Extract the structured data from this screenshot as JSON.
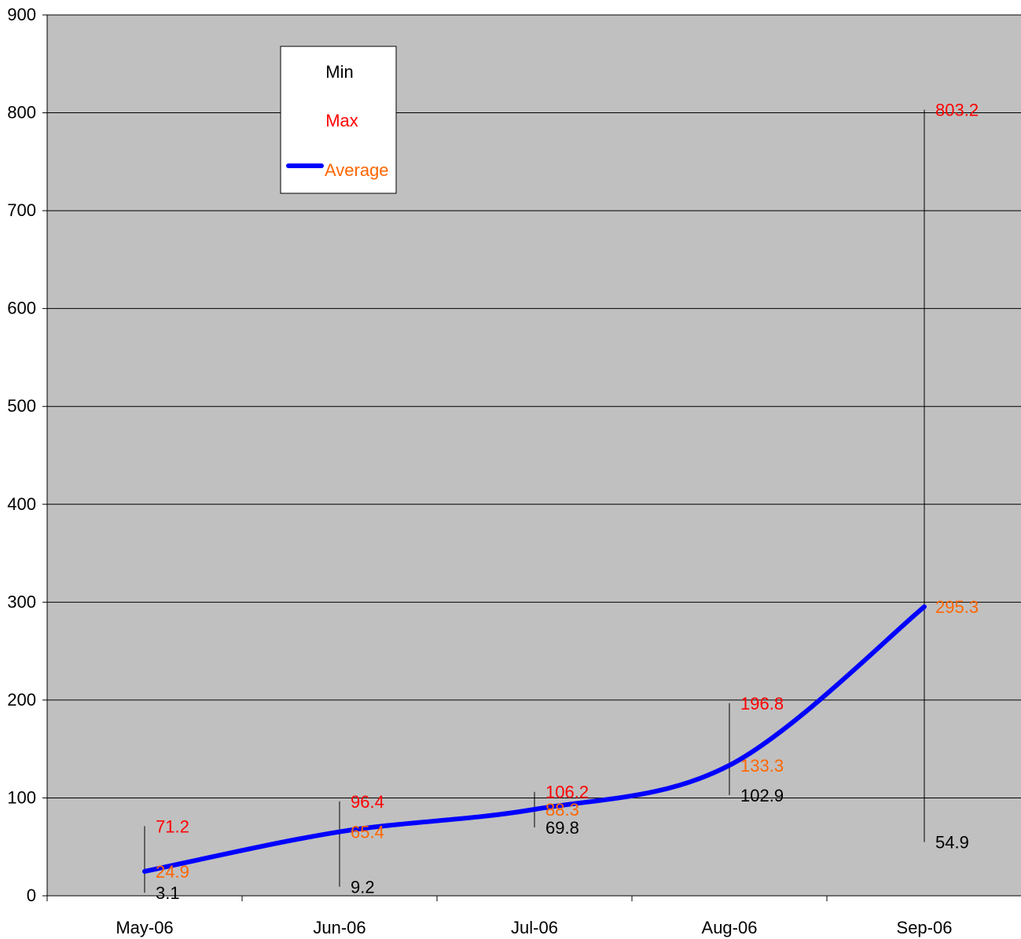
{
  "chart_data": {
    "type": "line",
    "categories": [
      "May-06",
      "Jun-06",
      "Jul-06",
      "Aug-06",
      "Sep-06"
    ],
    "series": [
      {
        "name": "Min",
        "values": [
          3.1,
          9.2,
          69.8,
          102.9,
          54.9
        ],
        "label_color": "#000000"
      },
      {
        "name": "Max",
        "values": [
          71.2,
          96.4,
          106.2,
          196.8,
          803.2
        ],
        "label_color": "#ff0000"
      },
      {
        "name": "Average",
        "values": [
          24.9,
          65.4,
          88.3,
          133.3,
          295.3
        ],
        "label_color": "#ff6600",
        "line_color": "#0000ff"
      }
    ],
    "value_labels": {
      "min": [
        "3.1",
        "9.2",
        "69.8",
        "102.9",
        "54.9"
      ],
      "max": [
        "71.2",
        "96.4",
        "106.2",
        "196.8",
        "803.2"
      ],
      "average": [
        "24.9",
        "65.4",
        "88.3",
        "133.3",
        "295.3"
      ]
    },
    "ylim": [
      0,
      900
    ],
    "y_ticks": [
      "0",
      "100",
      "200",
      "300",
      "400",
      "500",
      "600",
      "700",
      "800",
      "900"
    ],
    "grid": true,
    "legend": {
      "placement": "top-left",
      "items": [
        "Min",
        "Max",
        "Average"
      ]
    },
    "colors": {
      "plot_background": "#c0c0c0",
      "gridline": "#000000",
      "range_line": "#000000"
    },
    "title": "",
    "xlabel": "",
    "ylabel": ""
  }
}
